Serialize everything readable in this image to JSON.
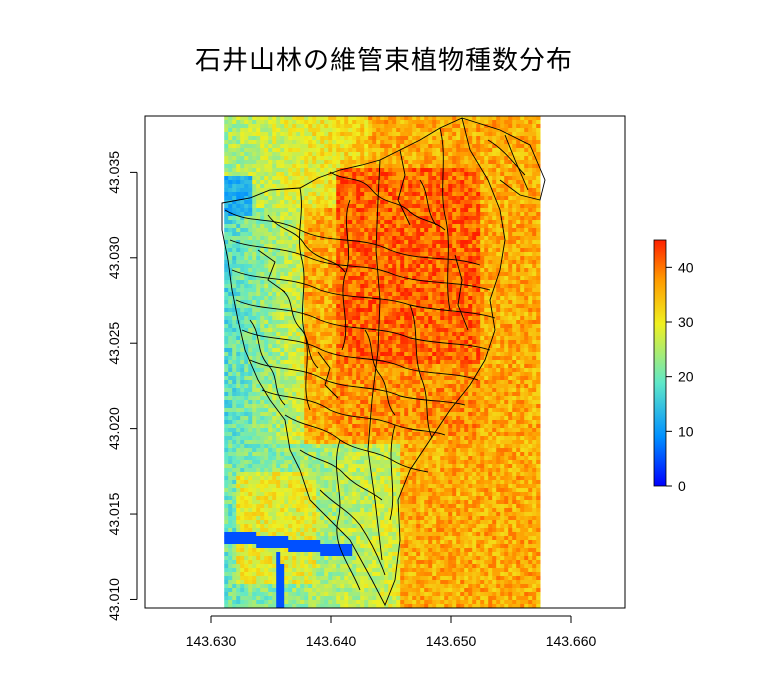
{
  "title": "石井山林の維管束植物種数分布",
  "x_axis": {
    "ticks": [
      "143.630",
      "143.640",
      "143.650",
      "143.660"
    ],
    "values": [
      143.63,
      143.64,
      143.65,
      143.66
    ],
    "lim": [
      143.6245,
      143.6645
    ]
  },
  "y_axis": {
    "ticks": [
      "43.010",
      "43.015",
      "43.020",
      "43.025",
      "43.030",
      "43.035"
    ],
    "values": [
      43.01,
      43.015,
      43.02,
      43.025,
      43.03,
      43.035
    ],
    "lim": [
      43.0095,
      43.0383
    ]
  },
  "raster_extent": {
    "x": [
      143.6311,
      143.6574
    ],
    "y": [
      43.0095,
      43.0383
    ]
  },
  "legend": {
    "ticks": [
      "0",
      "10",
      "20",
      "30",
      "40"
    ],
    "values": [
      0,
      10,
      20,
      30,
      40
    ],
    "range": [
      0,
      45
    ],
    "colors": [
      "#0000ff",
      "#00a8ff",
      "#66e8c8",
      "#f0f020",
      "#ff9a00",
      "#ff2200"
    ]
  }
}
